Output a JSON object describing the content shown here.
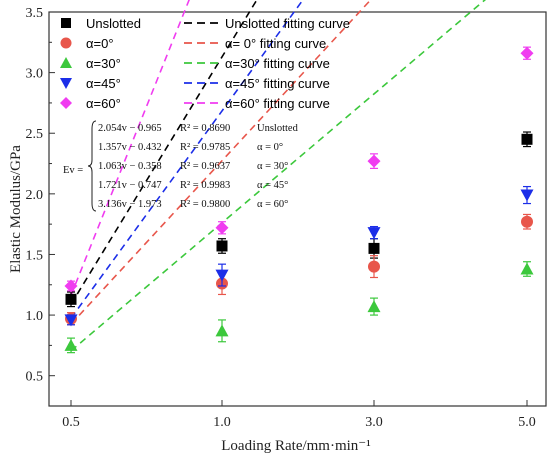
{
  "chart_data": {
    "type": "scatter",
    "title": "",
    "xlabel": "Loading Rate/mm·min⁻¹",
    "ylabel": "Elastic Modulus/GPa",
    "x_categories": [
      "0.5",
      "1.0",
      "3.0",
      "5.0"
    ],
    "x_index": [
      1,
      2,
      3,
      4
    ],
    "ylim": [
      0.25,
      3.5
    ],
    "yticks": [
      "0.5",
      "1.0",
      "1.5",
      "2.0",
      "2.5",
      "3.0",
      "3.5"
    ],
    "legend_position": "top-left",
    "series": [
      {
        "name": "Unslotted",
        "fit_name": "Unslotted fitting curve",
        "color": "#000000",
        "marker": "square",
        "values": [
          1.13,
          1.57,
          1.55,
          2.45
        ],
        "errors": [
          0.06,
          0.06,
          0.08,
          0.06
        ],
        "fit": {
          "slope": 2.054,
          "intercept": -0.965
        }
      },
      {
        "name": "α=0°",
        "fit_name": "α= 0°  fitting curve",
        "color": "#e8564b",
        "marker": "circle",
        "values": [
          0.97,
          1.26,
          1.4,
          1.77
        ],
        "errors": [
          0.05,
          0.09,
          0.09,
          0.06
        ],
        "fit": {
          "slope": 1.357,
          "intercept": -0.432
        }
      },
      {
        "name": "α=30°",
        "fit_name": "α=30° fitting curve",
        "color": "#3cc83c",
        "marker": "triangle-up",
        "values": [
          0.75,
          0.87,
          1.07,
          1.38
        ],
        "errors": [
          0.06,
          0.09,
          0.07,
          0.06
        ],
        "fit": {
          "slope": 1.063,
          "intercept": -0.358
        }
      },
      {
        "name": "α=45°",
        "fit_name": "α=45° fitting curve",
        "color": "#1c2ee8",
        "marker": "triangle-down",
        "values": [
          0.96,
          1.33,
          1.68,
          1.99
        ],
        "errors": [
          0.04,
          0.09,
          0.05,
          0.07
        ],
        "fit": {
          "slope": 1.721,
          "intercept": -0.747
        }
      },
      {
        "name": "α=60°",
        "fit_name": "α=60° fitting curve",
        "color": "#f03cf0",
        "marker": "diamond",
        "values": [
          1.24,
          1.72,
          2.27,
          3.16
        ],
        "errors": [
          0.04,
          0.05,
          0.06,
          0.05
        ],
        "fit": {
          "slope": 3.136,
          "intercept": -1.973
        }
      }
    ],
    "equations": {
      "lhs": "Ev =",
      "rows": [
        {
          "expr": "2.054v − 0.965",
          "r2": "R² = 0.8690",
          "label": "Unslotted"
        },
        {
          "expr": "1.357v − 0.432",
          "r2": "R² = 0.9785",
          "label": "α = 0°"
        },
        {
          "expr": "1.063v − 0.358",
          "r2": "R² = 0.9637",
          "label": "α = 30°"
        },
        {
          "expr": "1.721v − 0.747",
          "r2": "R² = 0.9983",
          "label": "α = 45°"
        },
        {
          "expr": "3.136v − 1.973",
          "r2": "R² = 0.9800",
          "label": "α = 60°"
        }
      ]
    }
  }
}
